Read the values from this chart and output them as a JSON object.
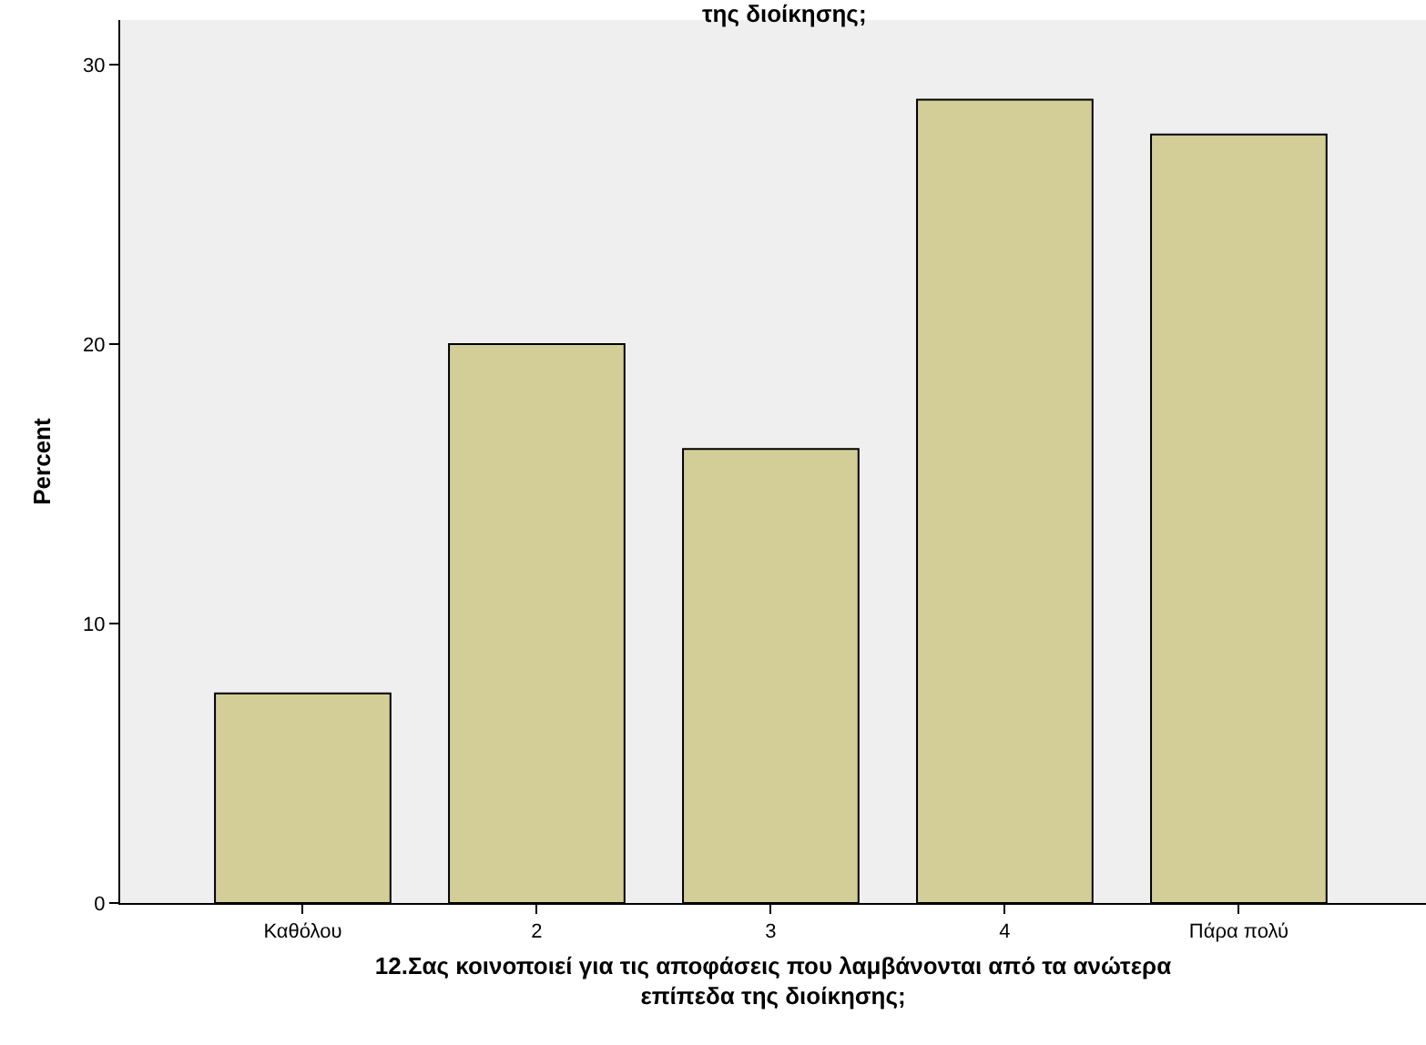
{
  "chart_data": {
    "type": "bar",
    "title": "της διοίκησης;",
    "xlabel": "12.Σας κοινοποιεί για τις αποφάσεις που λαμβάνονται από τα ανώτερα\nεπίπεδα της διοίκησης;",
    "ylabel": "Percent",
    "categories": [
      "Καθόλου",
      "2",
      "3",
      "4",
      "Πάρα πολύ"
    ],
    "values": [
      7.5,
      20.0,
      16.25,
      28.75,
      27.5
    ],
    "color": "#d3ce97",
    "ylim": [
      0,
      31.6
    ],
    "yticks": [
      0,
      10,
      20,
      30
    ],
    "grid": false
  }
}
